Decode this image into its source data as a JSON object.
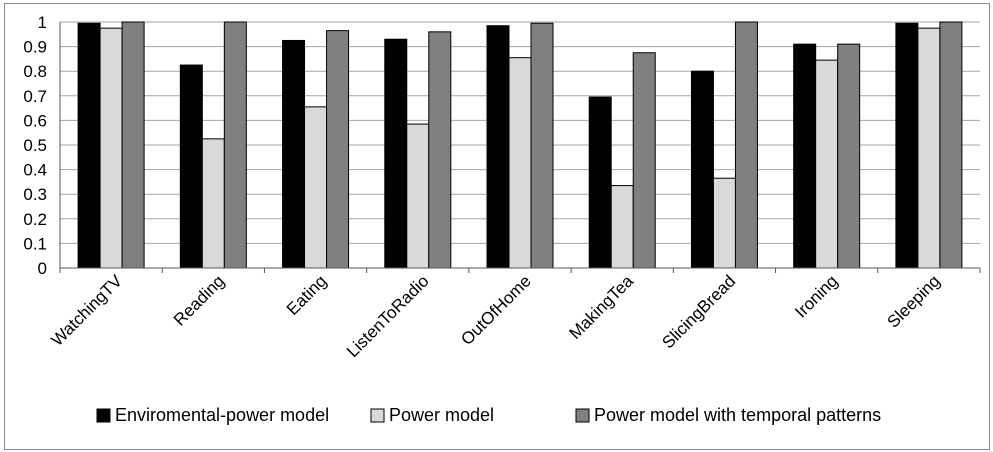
{
  "chart_data": {
    "type": "bar",
    "categories": [
      "WatchingTV",
      "Reading",
      "Eating",
      "ListenToRadio",
      "OutOfHome",
      "MakingTea",
      "SlicingBread",
      "Ironing",
      "Sleeping"
    ],
    "series": [
      {
        "name": "Enviromental-power model",
        "color": "#000000",
        "values": [
          0.995,
          0.825,
          0.925,
          0.93,
          0.985,
          0.695,
          0.8,
          0.91,
          0.995
        ]
      },
      {
        "name": "Power model",
        "color": "#d9d9d9",
        "values": [
          0.975,
          0.525,
          0.655,
          0.585,
          0.855,
          0.335,
          0.365,
          0.845,
          0.975
        ]
      },
      {
        "name": "Power model with temporal patterns",
        "color": "#808080",
        "values": [
          1.0,
          1.0,
          0.965,
          0.96,
          0.995,
          0.875,
          1.0,
          0.91,
          1.0
        ]
      }
    ],
    "yticks": [
      "0",
      "0.1",
      "0.2",
      "0.3",
      "0.4",
      "0.5",
      "0.6",
      "0.7",
      "0.8",
      "0.9",
      "1"
    ],
    "ylim": [
      0,
      1
    ],
    "title": "",
    "xlabel": "",
    "ylabel": "",
    "grid": true,
    "legend_position": "bottom"
  }
}
